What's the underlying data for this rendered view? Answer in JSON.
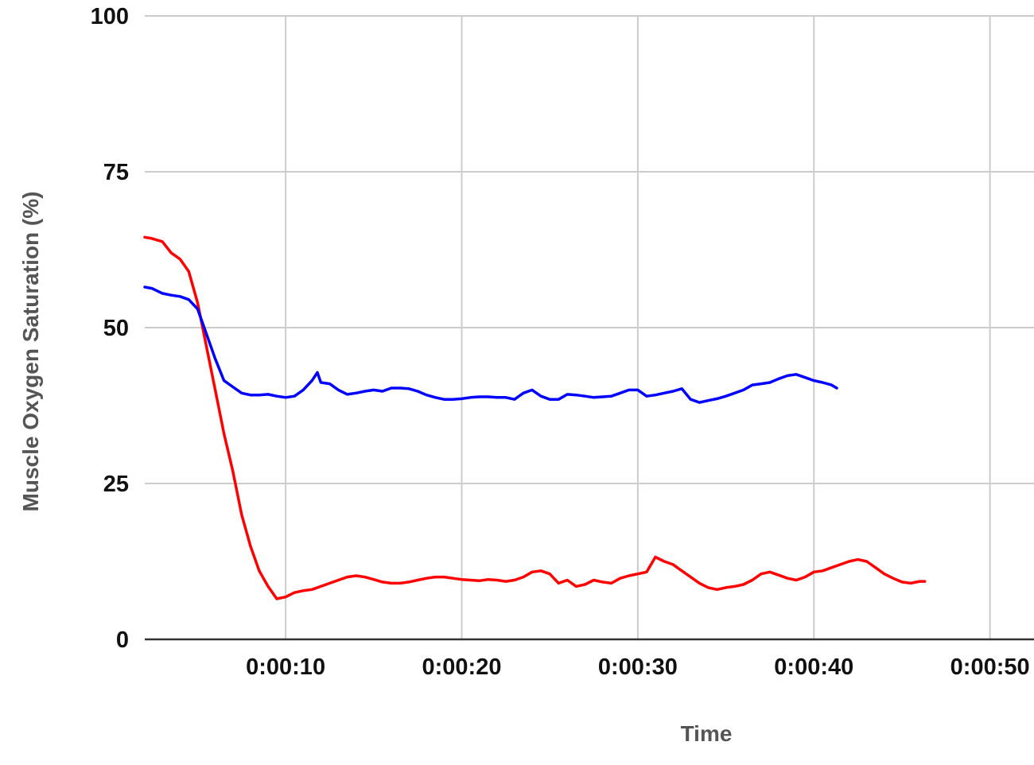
{
  "chart_data": {
    "type": "line",
    "xlabel": "Time",
    "ylabel": "Muscle Oxygen Saturation (%)",
    "xlim": [
      2,
      52.5
    ],
    "ylim": [
      0,
      100
    ],
    "y_ticks": [
      0,
      25,
      50,
      75,
      100
    ],
    "x_ticks": [
      10,
      20,
      30,
      40,
      50
    ],
    "x_tick_labels": [
      "0:00:10",
      "0:00:20",
      "0:00:30",
      "0:00:40",
      "0:00:50"
    ],
    "grid": true,
    "legend": "none",
    "series": [
      {
        "color": "#ff0000",
        "x": [
          2.0,
          2.4,
          3.0,
          3.5,
          4.0,
          4.5,
          5.0,
          5.5,
          6.0,
          6.5,
          7.0,
          7.5,
          8.0,
          8.5,
          9.0,
          9.5,
          10.0,
          10.5,
          11.0,
          11.5,
          12.0,
          12.5,
          13.0,
          13.5,
          14.0,
          14.5,
          15.0,
          15.5,
          16.0,
          16.5,
          17.0,
          17.5,
          18.0,
          18.5,
          19.0,
          19.5,
          20.0,
          20.5,
          21.0,
          21.5,
          22.0,
          22.5,
          23.0,
          23.5,
          24.0,
          24.5,
          25.0,
          25.5,
          26.0,
          26.5,
          27.0,
          27.5,
          28.0,
          28.5,
          29.0,
          29.5,
          30.0,
          30.5,
          31.0,
          31.5,
          32.0,
          32.5,
          33.0,
          33.5,
          34.0,
          34.5,
          35.0,
          35.5,
          36.0,
          36.5,
          37.0,
          37.5,
          38.0,
          38.5,
          39.0,
          39.5,
          40.0,
          40.5,
          41.0,
          41.5,
          42.0,
          42.5,
          43.0,
          43.5,
          44.0,
          44.5,
          45.0,
          45.5,
          46.0,
          46.3
        ],
        "values": [
          64.5,
          64.3,
          63.8,
          62.0,
          61.0,
          59.0,
          54.0,
          47.0,
          40.0,
          33.0,
          27.0,
          20.0,
          15.0,
          11.0,
          8.5,
          6.5,
          6.8,
          7.5,
          7.8,
          8.0,
          8.5,
          9.0,
          9.5,
          10.0,
          10.2,
          10.0,
          9.6,
          9.2,
          9.0,
          9.0,
          9.2,
          9.5,
          9.8,
          10.0,
          10.0,
          9.8,
          9.6,
          9.5,
          9.4,
          9.6,
          9.5,
          9.3,
          9.5,
          10.0,
          10.8,
          11.0,
          10.5,
          9.0,
          9.5,
          8.5,
          8.8,
          9.5,
          9.2,
          9.0,
          9.8,
          10.2,
          10.5,
          10.8,
          13.2,
          12.5,
          12.0,
          11.0,
          10.0,
          9.0,
          8.3,
          8.0,
          8.3,
          8.5,
          8.8,
          9.5,
          10.5,
          10.8,
          10.3,
          9.8,
          9.5,
          10.0,
          10.8,
          11.0,
          11.5,
          12.0,
          12.5,
          12.8,
          12.5,
          11.5,
          10.5,
          9.8,
          9.2,
          9.0,
          9.3,
          9.3
        ]
      },
      {
        "color": "#0000ff",
        "x": [
          2.0,
          2.4,
          3.0,
          3.5,
          4.0,
          4.5,
          5.0,
          5.5,
          6.0,
          6.5,
          7.0,
          7.5,
          8.0,
          8.5,
          9.0,
          9.5,
          10.0,
          10.5,
          11.0,
          11.5,
          11.8,
          12.0,
          12.5,
          13.0,
          13.5,
          14.0,
          14.5,
          15.0,
          15.5,
          16.0,
          16.5,
          17.0,
          17.5,
          18.0,
          18.5,
          19.0,
          19.5,
          20.0,
          20.5,
          21.0,
          21.5,
          22.0,
          22.5,
          23.0,
          23.5,
          24.0,
          24.5,
          25.0,
          25.5,
          26.0,
          26.5,
          27.0,
          27.5,
          28.0,
          28.5,
          29.0,
          29.5,
          30.0,
          30.5,
          31.0,
          31.5,
          32.0,
          32.5,
          33.0,
          33.5,
          34.0,
          34.5,
          35.0,
          35.5,
          36.0,
          36.5,
          37.0,
          37.5,
          38.0,
          38.5,
          39.0,
          39.5,
          40.0,
          40.5,
          41.0,
          41.3
        ],
        "values": [
          56.5,
          56.3,
          55.5,
          55.2,
          55.0,
          54.5,
          53.0,
          49.0,
          45.0,
          41.5,
          40.5,
          39.5,
          39.2,
          39.2,
          39.3,
          39.0,
          38.8,
          39.0,
          40.0,
          41.5,
          42.8,
          41.2,
          41.0,
          40.0,
          39.3,
          39.5,
          39.8,
          40.0,
          39.8,
          40.3,
          40.3,
          40.2,
          39.8,
          39.2,
          38.8,
          38.5,
          38.5,
          38.6,
          38.8,
          38.9,
          38.9,
          38.8,
          38.8,
          38.5,
          39.5,
          40.0,
          39.0,
          38.5,
          38.5,
          39.3,
          39.2,
          39.0,
          38.8,
          38.9,
          39.0,
          39.5,
          40.0,
          40.0,
          39.0,
          39.2,
          39.5,
          39.8,
          40.2,
          38.5,
          38.0,
          38.3,
          38.6,
          39.0,
          39.5,
          40.0,
          40.8,
          41.0,
          41.2,
          41.8,
          42.3,
          42.5,
          42.0,
          41.5,
          41.2,
          40.8,
          40.3
        ]
      }
    ]
  }
}
